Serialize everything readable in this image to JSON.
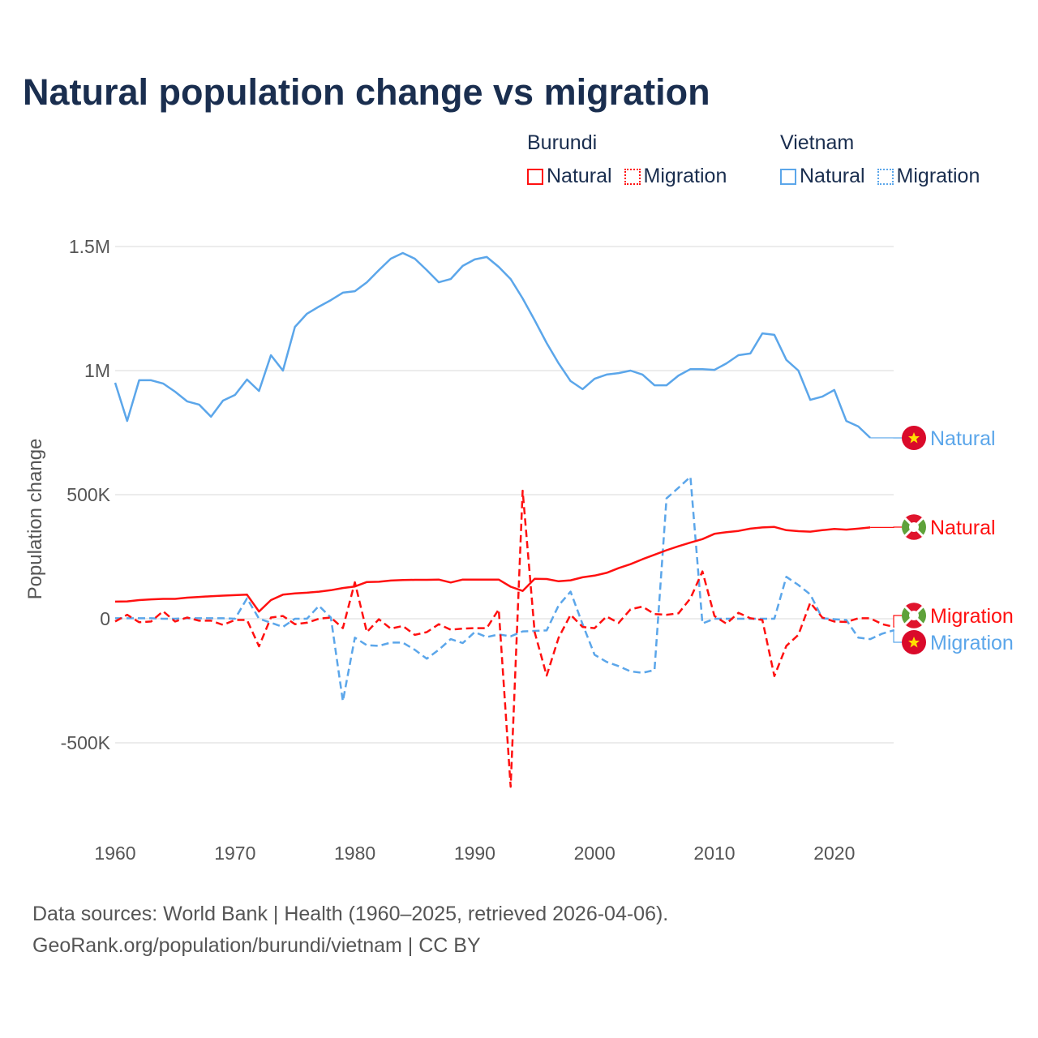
{
  "title": "Natural population change vs migration",
  "legend": {
    "groups": [
      {
        "title": "Burundi",
        "items": [
          {
            "label": "Natural",
            "style": "solid",
            "color": "#ff1010"
          },
          {
            "label": "Migration",
            "style": "dotted",
            "color": "#ff1010"
          }
        ]
      },
      {
        "title": "Vietnam",
        "items": [
          {
            "label": "Natural",
            "style": "solid",
            "color": "#5ba6ea"
          },
          {
            "label": "Migration",
            "style": "dotted",
            "color": "#5ba6ea"
          }
        ]
      }
    ]
  },
  "footer": {
    "line1": "Data sources: World Bank | Health (1960–2025, retrieved 2026-04-06).",
    "line2": "GeoRank.org/population/burundi/vietnam | CC BY"
  },
  "chart_data": {
    "type": "line",
    "title": "Natural population change vs migration",
    "xlabel": "",
    "ylabel": "Population change",
    "xlim": [
      1960,
      2025
    ],
    "ylim": [
      -700000,
      1550000
    ],
    "grid": true,
    "legend_position": "top-right",
    "x_start": 1960,
    "xticks": [
      {
        "value": 1960,
        "label": "1960"
      },
      {
        "value": 1970,
        "label": "1970"
      },
      {
        "value": 1980,
        "label": "1980"
      },
      {
        "value": 1990,
        "label": "1990"
      },
      {
        "value": 2000,
        "label": "2000"
      },
      {
        "value": 2010,
        "label": "2010"
      },
      {
        "value": 2020,
        "label": "2020"
      }
    ],
    "yticks": [
      {
        "value": 1500000,
        "label": "1.5M"
      },
      {
        "value": 1000000,
        "label": "1M"
      },
      {
        "value": 500000,
        "label": "500K"
      },
      {
        "value": 0,
        "label": "0"
      },
      {
        "value": -500000,
        "label": "-500K"
      }
    ],
    "series": [
      {
        "id": "vietnam-natural",
        "name": "Natural",
        "country": "Vietnam",
        "color": "#5ba6ea",
        "dashed": false,
        "flag": "vietnam",
        "values": [
          951000,
          797000,
          961000,
          961000,
          948000,
          915000,
          876000,
          863000,
          814000,
          879000,
          902000,
          964000,
          918000,
          1062000,
          1000000,
          1176000,
          1229000,
          1258000,
          1284000,
          1314000,
          1320000,
          1356000,
          1405000,
          1451000,
          1474000,
          1451000,
          1405000,
          1356000,
          1369000,
          1422000,
          1448000,
          1458000,
          1418000,
          1369000,
          1291000,
          1203000,
          1111000,
          1029000,
          958000,
          925000,
          967000,
          984000,
          990000,
          1000000,
          984000,
          941000,
          941000,
          980000,
          1006000,
          1006000,
          1003000,
          1029000,
          1062000,
          1069000,
          1150000,
          1144000,
          1043000,
          1000000,
          882000,
          895000,
          922000,
          797000,
          775000,
          729000
        ]
      },
      {
        "id": "burundi-natural",
        "name": "Natural",
        "country": "Burundi",
        "color": "#ff1010",
        "dashed": false,
        "flag": "burundi",
        "values": [
          69000,
          70000,
          75000,
          78000,
          80000,
          80000,
          85000,
          88000,
          91000,
          93000,
          95000,
          97000,
          29000,
          75000,
          97000,
          102000,
          105000,
          109000,
          115000,
          124000,
          130000,
          148000,
          149000,
          154000,
          156000,
          157000,
          157000,
          158000,
          146000,
          158000,
          158000,
          158000,
          158000,
          129000,
          112000,
          161000,
          160000,
          151000,
          155000,
          167000,
          174000,
          185000,
          204000,
          220000,
          240000,
          258000,
          276000,
          292000,
          307000,
          321000,
          342000,
          349000,
          354000,
          363000,
          368000,
          370000,
          357000,
          353000,
          351000,
          357000,
          362000,
          359000,
          363000,
          368000
        ]
      },
      {
        "id": "burundi-migration",
        "name": "Migration",
        "country": "Burundi",
        "color": "#ff1010",
        "dashed": true,
        "flag": "burundi",
        "values": [
          -11000,
          16000,
          -14000,
          -11000,
          30000,
          -11000,
          5000,
          -8000,
          -8000,
          -25000,
          -5000,
          -5000,
          -111000,
          5000,
          11000,
          -22000,
          -16000,
          0,
          5000,
          -38000,
          147000,
          -54000,
          -2000,
          -40000,
          -29000,
          -65000,
          -54000,
          -22000,
          -44000,
          -40000,
          -38000,
          -38000,
          38000,
          -677000,
          516000,
          -54000,
          -229000,
          -76000,
          16000,
          -33000,
          -38000,
          9000,
          -17000,
          38000,
          49000,
          19000,
          16000,
          22000,
          82000,
          191000,
          11000,
          -20000,
          24000,
          2000,
          -5000,
          -231000,
          -109000,
          -65000,
          65000,
          5000,
          -11000,
          -13000,
          2000,
          2000,
          -22000,
          -33000
        ]
      },
      {
        "id": "vietnam-migration",
        "name": "Migration",
        "country": "Vietnam",
        "color": "#5ba6ea",
        "dashed": true,
        "flag": "vietnam",
        "values": [
          2000,
          2000,
          2000,
          2000,
          0,
          0,
          2000,
          2000,
          2000,
          2000,
          0,
          82000,
          0,
          -16000,
          -33000,
          0,
          0,
          52000,
          5000,
          -332000,
          -76000,
          -107000,
          -109000,
          -96000,
          -96000,
          -125000,
          -161000,
          -125000,
          -82000,
          -98000,
          -54000,
          -74000,
          -63000,
          -71000,
          -51000,
          -49000,
          -47000,
          54000,
          109000,
          -22000,
          -145000,
          -174000,
          -191000,
          -212000,
          -218000,
          -207000,
          485000,
          528000,
          572000,
          -19000,
          0,
          0,
          0,
          0,
          0,
          0,
          169000,
          136000,
          98000,
          2000,
          -2000,
          -5000,
          -76000,
          -82000,
          -60000,
          -46000
        ]
      }
    ],
    "end_labels": [
      {
        "series": "vietnam-natural",
        "text": "Natural"
      },
      {
        "series": "burundi-natural",
        "text": "Natural"
      },
      {
        "series": "burundi-migration",
        "text": "Migration"
      },
      {
        "series": "vietnam-migration",
        "text": "Migration"
      }
    ]
  }
}
